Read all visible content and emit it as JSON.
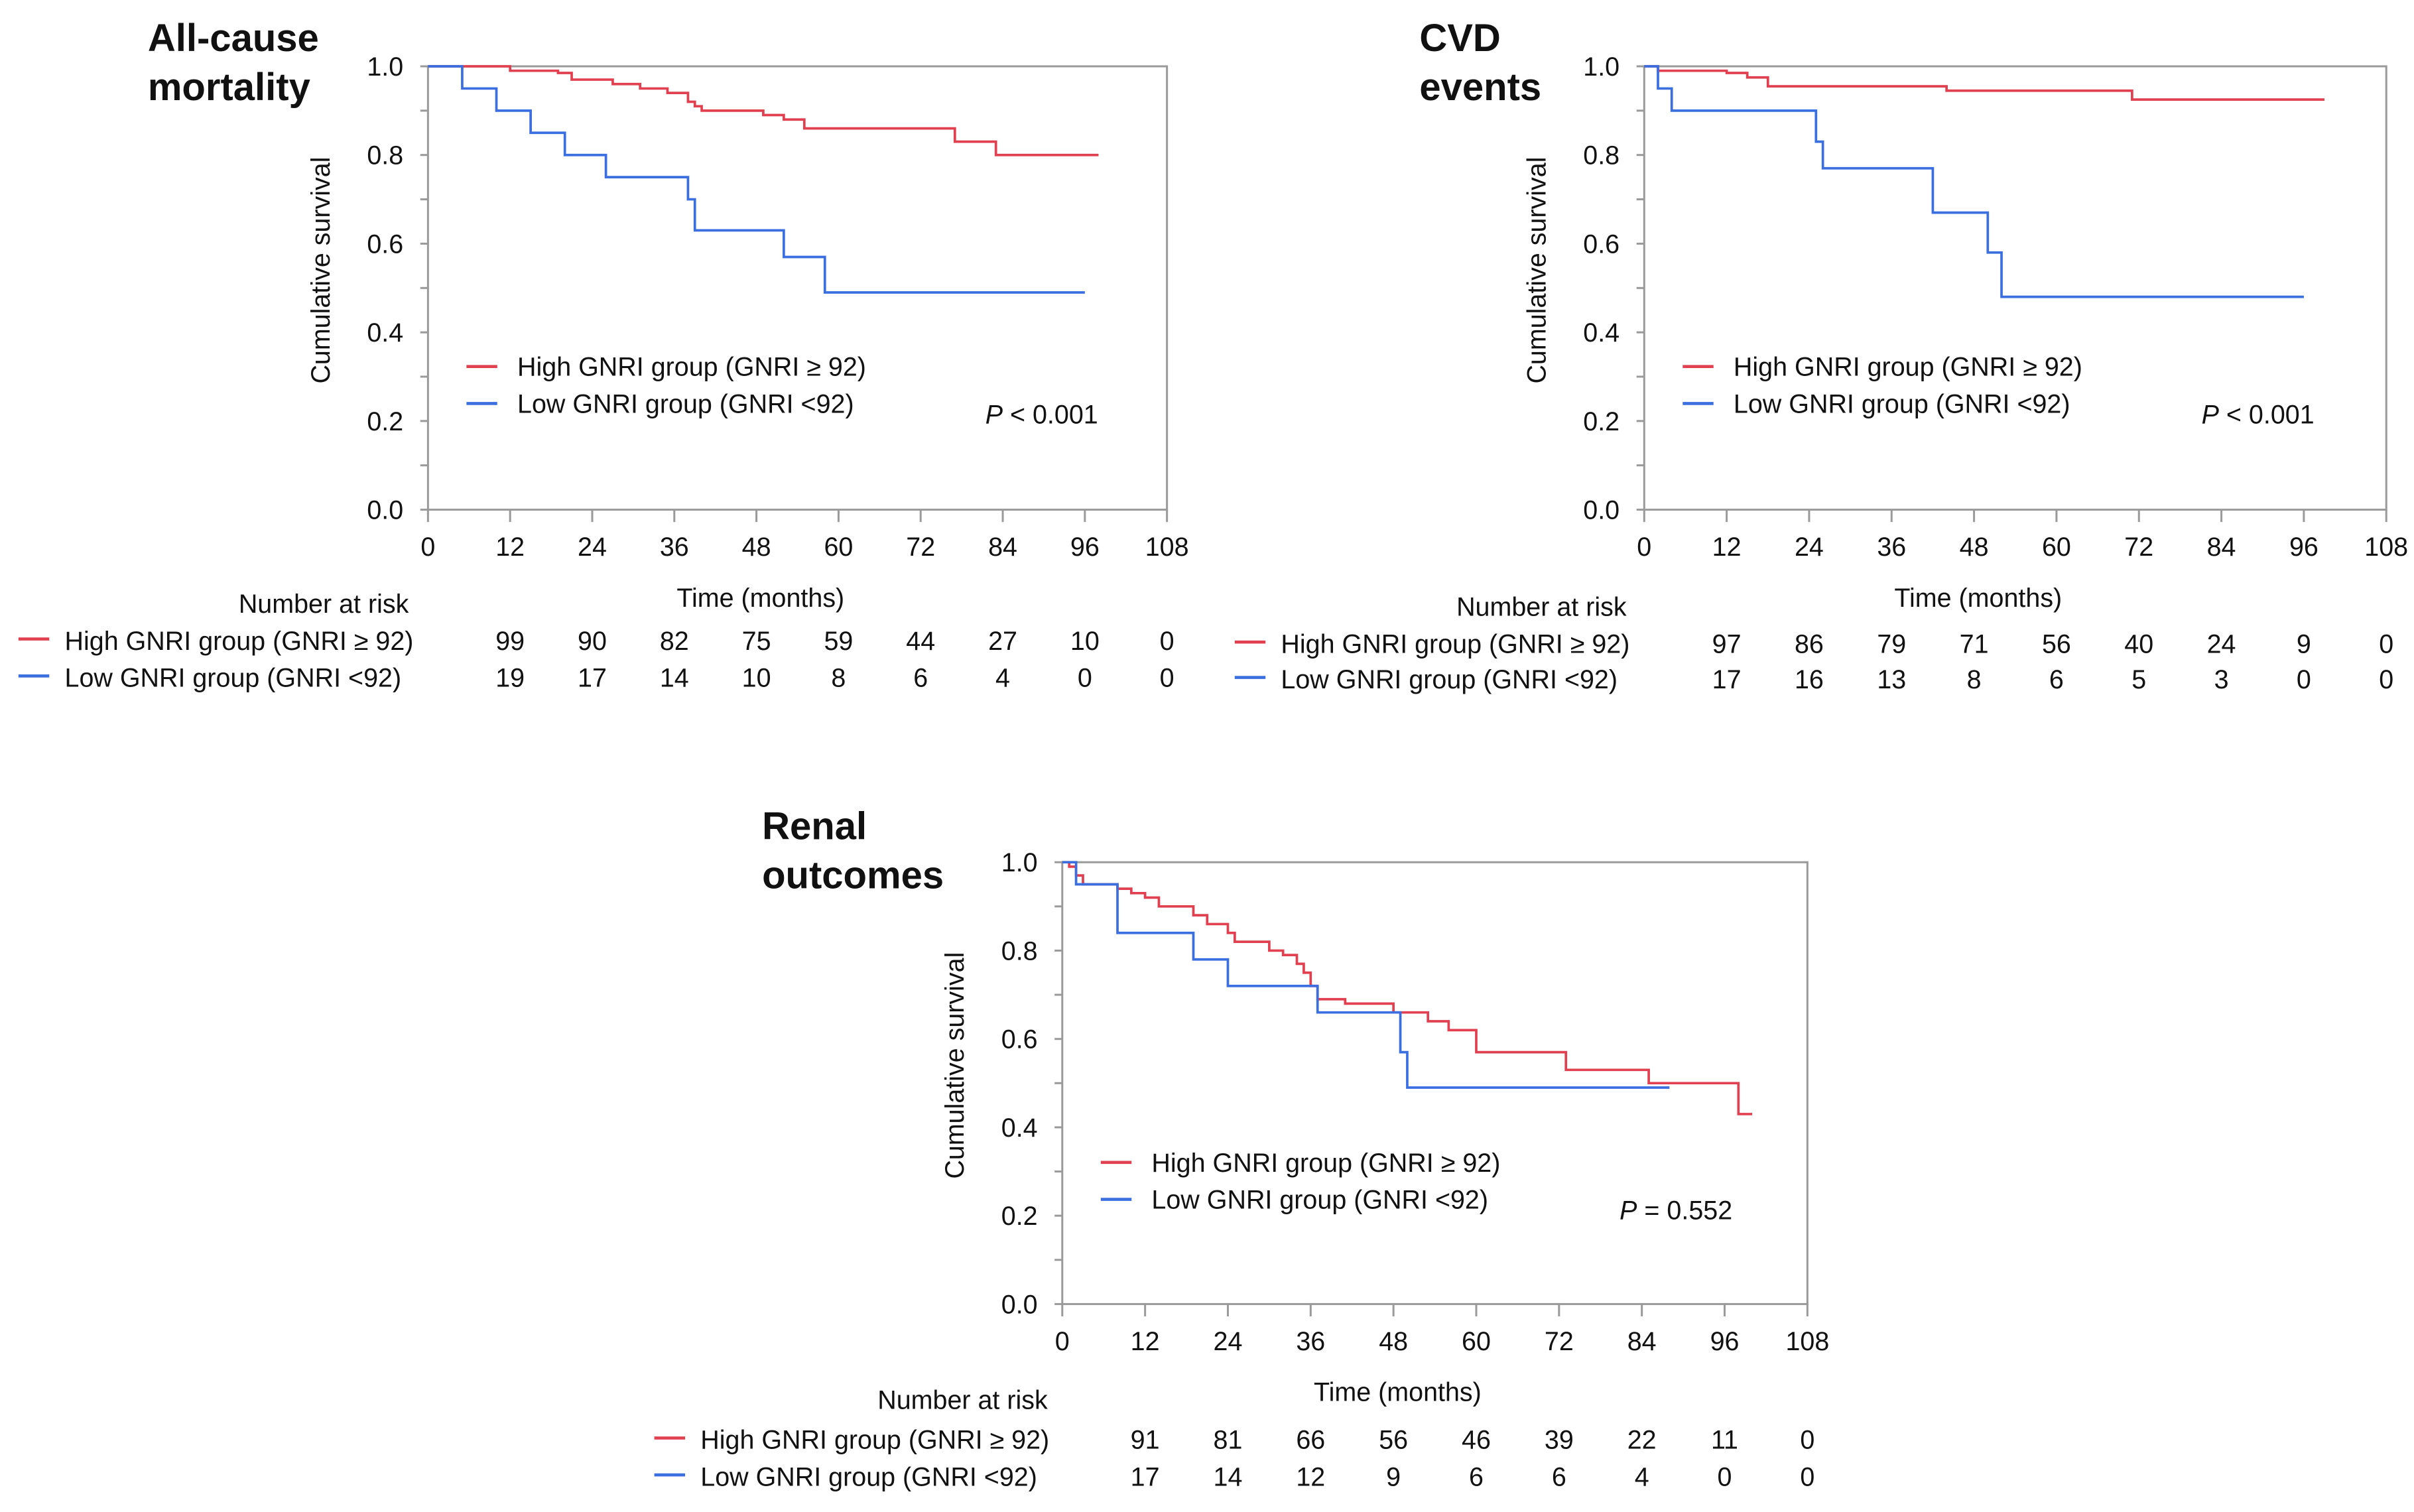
{
  "colors": {
    "high": "#e0404f",
    "low": "#3b6fe0",
    "axis": "#9a9a9a"
  },
  "chart_data": [
    {
      "type": "line",
      "title_lines": [
        "All-cause",
        "mortality"
      ],
      "xlabel": "Time (months)",
      "ylabel": "Cumulative  survival",
      "xlim": [
        0,
        108
      ],
      "ylim": [
        0,
        1
      ],
      "xticks": [
        "0",
        "12",
        "24",
        "36",
        "48",
        "60",
        "72",
        "84",
        "96",
        "108"
      ],
      "yticks": [
        "0.0",
        "0.2",
        "0.4",
        "0.6",
        "0.8",
        "1.0"
      ],
      "legend": [
        "High GNRI group (GNRI ≥ 92)",
        "Low GNRI group (GNRI <92)"
      ],
      "legend_placement": "lower-left",
      "p_label": "P",
      "p_text": " < 0.001",
      "series": [
        {
          "name": "High GNRI group (GNRI ≥ 92)",
          "color_key": "high",
          "x": [
            0,
            12,
            19,
            21,
            27,
            31,
            35,
            38,
            39,
            40,
            49,
            52,
            55,
            77,
            83,
            98
          ],
          "y": [
            1.0,
            0.99,
            0.985,
            0.97,
            0.96,
            0.95,
            0.94,
            0.92,
            0.91,
            0.9,
            0.89,
            0.88,
            0.86,
            0.83,
            0.8,
            0.8
          ]
        },
        {
          "name": "Low GNRI group (GNRI <92)",
          "color_key": "low",
          "x": [
            0,
            5,
            10,
            15,
            20,
            26,
            38,
            39,
            52,
            58,
            96
          ],
          "y": [
            1.0,
            0.95,
            0.9,
            0.85,
            0.8,
            0.75,
            0.7,
            0.63,
            0.57,
            0.49,
            0.49
          ]
        }
      ],
      "risk_table": {
        "header": "Number at risk",
        "rows": [
          {
            "label": "High GNRI group (GNRI ≥ 92)",
            "values": [
              "99",
              "90",
              "82",
              "75",
              "59",
              "44",
              "27",
              "10",
              "0"
            ]
          },
          {
            "label": "Low GNRI group (GNRI <92)",
            "values": [
              "19",
              "17",
              "14",
              "10",
              "8",
              "6",
              "4",
              "0",
              "0"
            ]
          }
        ]
      }
    },
    {
      "type": "line",
      "title_lines": [
        "CVD",
        "events"
      ],
      "xlabel": "Time (months)",
      "ylabel": "Cumulative  survival",
      "xlim": [
        0,
        108
      ],
      "ylim": [
        0,
        1
      ],
      "xticks": [
        "0",
        "12",
        "24",
        "36",
        "48",
        "60",
        "72",
        "84",
        "96",
        "108"
      ],
      "yticks": [
        "0.0",
        "0.2",
        "0.4",
        "0.6",
        "0.8",
        "1.0"
      ],
      "legend": [
        "High GNRI group (GNRI ≥ 92)",
        "Low GNRI group (GNRI <92)"
      ],
      "legend_placement": "lower-left",
      "p_label": "P",
      "p_text": " < 0.001",
      "series": [
        {
          "name": "High GNRI group (GNRI ≥ 92)",
          "color_key": "high",
          "x": [
            0,
            2,
            12,
            15,
            18,
            44,
            71,
            99
          ],
          "y": [
            1.0,
            0.99,
            0.985,
            0.975,
            0.955,
            0.945,
            0.925,
            0.925
          ]
        },
        {
          "name": "Low GNRI group (GNRI <92)",
          "color_key": "low",
          "x": [
            0,
            2,
            4,
            25,
            26,
            42,
            50,
            52,
            96
          ],
          "y": [
            1.0,
            0.95,
            0.9,
            0.83,
            0.77,
            0.67,
            0.58,
            0.48,
            0.48
          ]
        }
      ],
      "risk_table": {
        "header": "Number at risk",
        "rows": [
          {
            "label": "High GNRI group (GNRI ≥ 92)",
            "values": [
              "97",
              "86",
              "79",
              "71",
              "56",
              "40",
              "24",
              "9",
              "0"
            ]
          },
          {
            "label": "Low GNRI group (GNRI <92)",
            "values": [
              "17",
              "16",
              "13",
              "8",
              "6",
              "5",
              "3",
              "0",
              "0"
            ]
          }
        ]
      }
    },
    {
      "type": "line",
      "title_lines": [
        "Renal",
        "outcomes"
      ],
      "xlabel": "Time (months)",
      "ylabel": "Cumulative  survival",
      "xlim": [
        0,
        108
      ],
      "ylim": [
        0,
        1
      ],
      "xticks": [
        "0",
        "12",
        "24",
        "36",
        "48",
        "60",
        "72",
        "84",
        "96",
        "108"
      ],
      "yticks": [
        "0.0",
        "0.2",
        "0.4",
        "0.6",
        "0.8",
        "1.0"
      ],
      "legend": [
        "High GNRI group (GNRI ≥ 92)",
        "Low GNRI group (GNRI <92)"
      ],
      "legend_placement": "lower-left",
      "p_label": "P",
      "p_text": " = 0.552",
      "series": [
        {
          "name": "High GNRI group (GNRI ≥ 92)",
          "color_key": "high",
          "x": [
            0,
            1,
            2,
            3,
            8,
            10,
            12,
            14,
            19,
            21,
            24,
            25,
            30,
            32,
            34,
            35,
            36,
            37,
            41,
            48,
            53,
            56,
            60,
            73,
            85,
            98,
            100
          ],
          "y": [
            1.0,
            0.99,
            0.97,
            0.95,
            0.94,
            0.93,
            0.92,
            0.9,
            0.88,
            0.86,
            0.84,
            0.82,
            0.8,
            0.79,
            0.77,
            0.75,
            0.72,
            0.69,
            0.68,
            0.66,
            0.64,
            0.62,
            0.57,
            0.53,
            0.5,
            0.43,
            0.43
          ]
        },
        {
          "name": "Low GNRI group (GNRI <92)",
          "color_key": "low",
          "x": [
            0,
            2,
            8,
            19,
            24,
            37,
            49,
            50,
            88
          ],
          "y": [
            1.0,
            0.95,
            0.84,
            0.78,
            0.72,
            0.66,
            0.57,
            0.49,
            0.49
          ]
        }
      ],
      "risk_table": {
        "header": "Number at risk",
        "rows": [
          {
            "label": "High GNRI group (GNRI ≥ 92)",
            "values": [
              "91",
              "81",
              "66",
              "56",
              "46",
              "39",
              "22",
              "11",
              "0"
            ]
          },
          {
            "label": "Low GNRI group (GNRI <92)",
            "values": [
              "17",
              "14",
              "12",
              "9",
              "6",
              "6",
              "4",
              "0",
              "0"
            ]
          }
        ]
      }
    }
  ]
}
